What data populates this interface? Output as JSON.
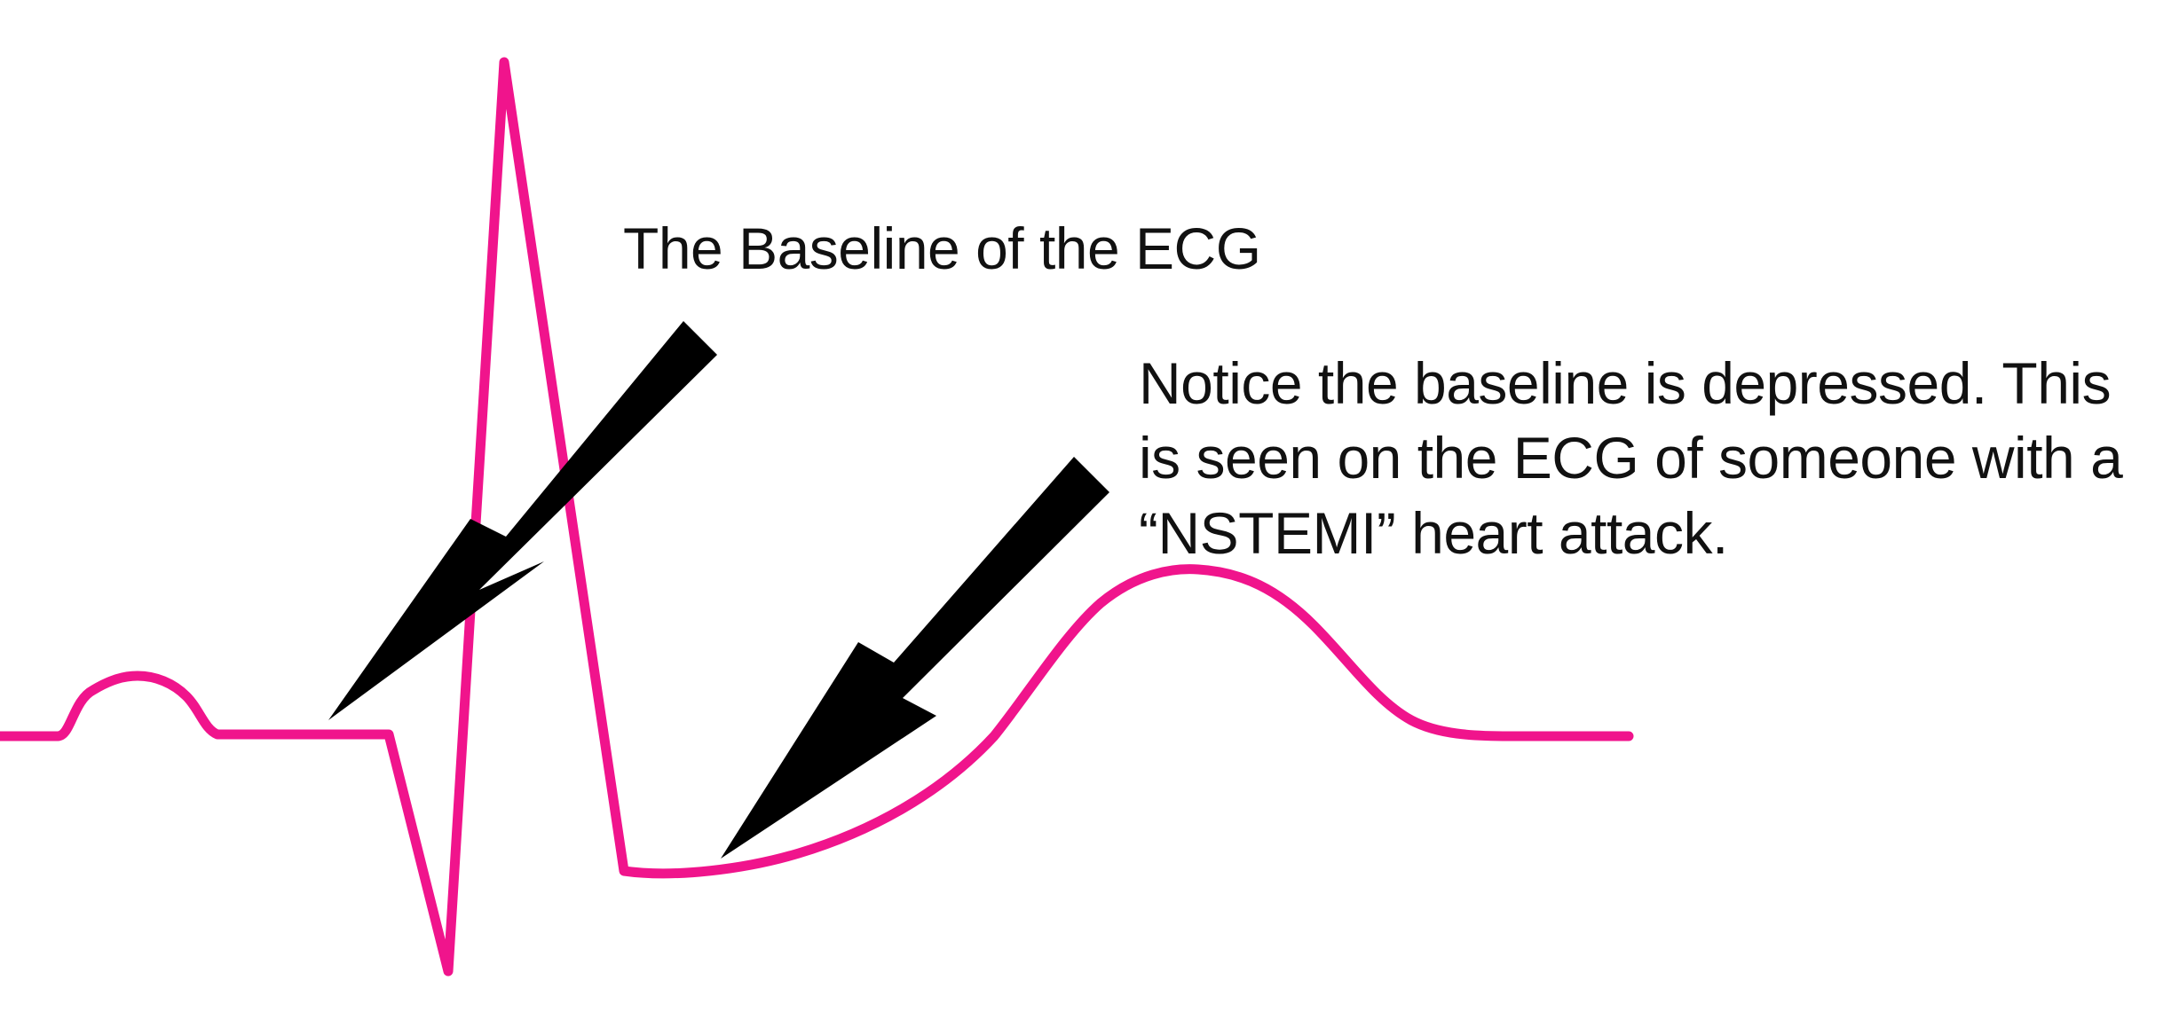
{
  "annotations": {
    "baseline_label": "The Baseline of the ECG",
    "notice_lines": [
      "Notice the baseline is depressed. This",
      "is seen on the ECG of someone with a",
      "“NSTEMI” heart attack."
    ]
  },
  "colors": {
    "ecg_trace": "#f0148c",
    "arrow": "#000000",
    "text": "#111111",
    "background": "#ffffff"
  }
}
